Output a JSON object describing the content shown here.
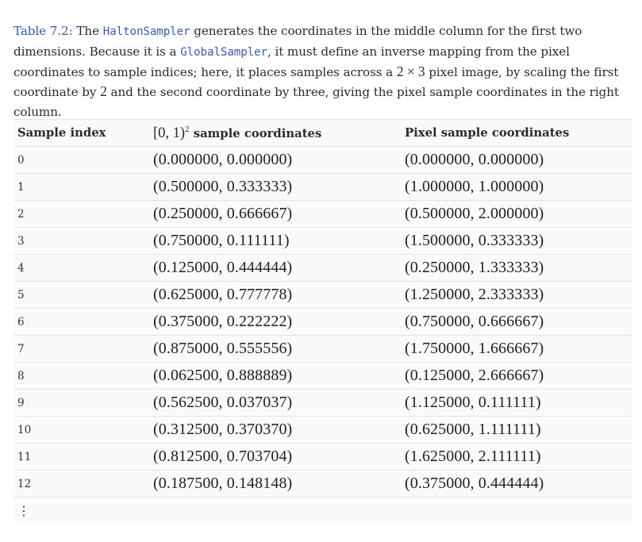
{
  "caption": {
    "label": "Table 7.2:",
    "seg1": "The",
    "code1": "HaltonSampler",
    "seg2": "generates the coordinates in the middle column for the first two dimensions. Because it is a",
    "code2": "GlobalSampler",
    "seg3": ", it must define an inverse mapping from the pixel coordinates to sample indices; here, it places samples across a",
    "math1": "2 × 3",
    "seg4": "pixel image, by scaling the first coordinate by",
    "math2": "2",
    "seg5": "and the second coordinate by three, giving the pixel sample coordinates in the right column."
  },
  "table": {
    "header": {
      "col1": "Sample index",
      "col2_math": "[0, 1)",
      "col2_sup": "2",
      "col2_text": "sample coordinates",
      "col3": "Pixel sample coordinates"
    },
    "rows": [
      {
        "index": "0",
        "unit": "(0.000000, 0.000000)",
        "pixel": "(0.000000, 0.000000)"
      },
      {
        "index": "1",
        "unit": "(0.500000, 0.333333)",
        "pixel": "(1.000000, 1.000000)"
      },
      {
        "index": "2",
        "unit": "(0.250000, 0.666667)",
        "pixel": "(0.500000, 2.000000)"
      },
      {
        "index": "3",
        "unit": "(0.750000, 0.111111)",
        "pixel": "(1.500000, 0.333333)"
      },
      {
        "index": "4",
        "unit": "(0.125000, 0.444444)",
        "pixel": "(0.250000, 1.333333)"
      },
      {
        "index": "5",
        "unit": "(0.625000, 0.777778)",
        "pixel": "(1.250000, 2.333333)"
      },
      {
        "index": "6",
        "unit": "(0.375000, 0.222222)",
        "pixel": "(0.750000, 0.666667)"
      },
      {
        "index": "7",
        "unit": "(0.875000, 0.555556)",
        "pixel": "(1.750000, 1.666667)"
      },
      {
        "index": "8",
        "unit": "(0.062500, 0.888889)",
        "pixel": "(0.125000, 2.666667)"
      },
      {
        "index": "9",
        "unit": "(0.562500, 0.037037)",
        "pixel": "(1.125000, 0.111111)"
      },
      {
        "index": "10",
        "unit": "(0.312500, 0.370370)",
        "pixel": "(0.625000, 1.111111)"
      },
      {
        "index": "11",
        "unit": "(0.812500, 0.703704)",
        "pixel": "(1.625000, 2.111111)"
      },
      {
        "index": "12",
        "unit": "(0.187500, 0.148148)",
        "pixel": "(0.375000, 0.444444)"
      }
    ],
    "ellipsis": "⋮"
  }
}
